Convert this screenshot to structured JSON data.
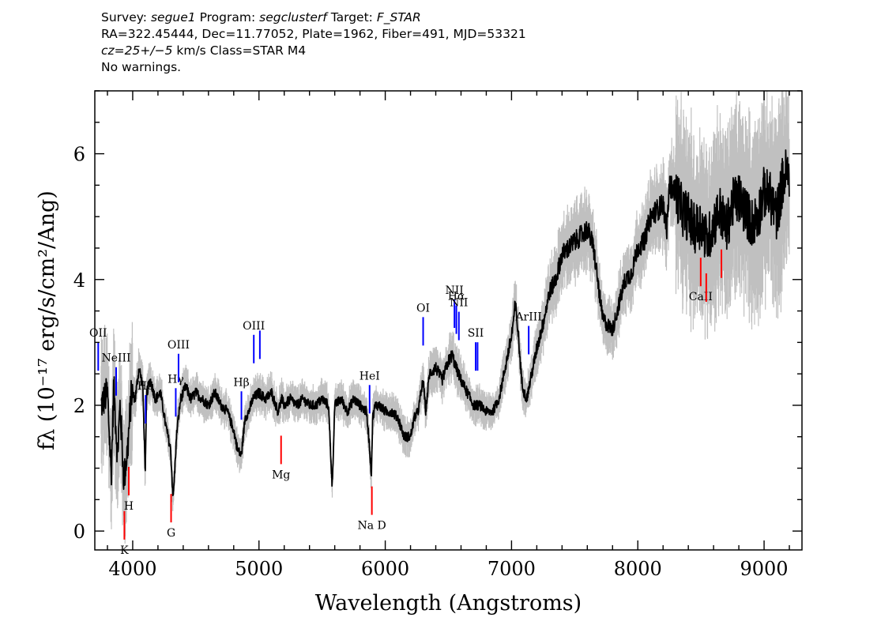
{
  "header": {
    "survey_label": "Survey:",
    "survey": "segue1",
    "program_label": "Program:",
    "program": "segclusterf",
    "target_label": "Target:",
    "target": "F_STAR",
    "coords_line": "RA=322.45444, Dec=11.77052, Plate=1962, Fiber=491, MJD=53321",
    "redshift": "cz=25+/−5",
    "redshift_units": "km/s",
    "class_text": "Class=STAR M4",
    "warnings": "No warnings."
  },
  "colors": {
    "flux": "#000000",
    "error": "#c0c0c0",
    "emission_line": "#0000ff",
    "absorption_line": "#ff0000",
    "axes": "#000000"
  },
  "chart_data": {
    "type": "line",
    "xlabel": "Wavelength (Angstroms)",
    "ylabel": "fλ (10⁻¹⁷ erg/s/cm²/Ang)",
    "xlim": [
      3700,
      9300
    ],
    "ylim": [
      -0.3,
      7.0
    ],
    "x_ticks": [
      4000,
      5000,
      6000,
      7000,
      8000,
      9000
    ],
    "x_tick_labels": [
      "4000",
      "5000",
      "6000",
      "7000",
      "8000",
      "9000"
    ],
    "y_ticks": [
      0,
      2,
      4,
      6
    ],
    "y_tick_labels": [
      "0",
      "2",
      "4",
      "6"
    ],
    "grid": false,
    "series": [
      {
        "role": "flux",
        "x": [
          3750,
          3800,
          3830,
          3850,
          3880,
          3900,
          3930,
          3960,
          3990,
          4020,
          4050,
          4080,
          4100,
          4110,
          4140,
          4180,
          4220,
          4260,
          4300,
          4320,
          4350,
          4380,
          4420,
          4460,
          4500,
          4550,
          4600,
          4650,
          4700,
          4750,
          4800,
          4830,
          4860,
          4890,
          4920,
          4950,
          5000,
          5050,
          5100,
          5150,
          5180,
          5200,
          5250,
          5300,
          5350,
          5400,
          5450,
          5500,
          5550,
          5580,
          5600,
          5650,
          5700,
          5750,
          5800,
          5850,
          5870,
          5890,
          5900,
          5920,
          5950,
          6000,
          6050,
          6100,
          6150,
          6200,
          6230,
          6260,
          6300,
          6320,
          6350,
          6400,
          6450,
          6500,
          6530,
          6560,
          6580,
          6600,
          6650,
          6700,
          6750,
          6800,
          6850,
          6900,
          6950,
          7000,
          7030,
          7050,
          7080,
          7100,
          7120,
          7150,
          7200,
          7250,
          7300,
          7350,
          7400,
          7450,
          7500,
          7550,
          7600,
          7620,
          7650,
          7700,
          7720,
          7750,
          7800,
          7850,
          7900,
          7950,
          8000,
          8050,
          8100,
          8150,
          8200,
          8230,
          8250,
          8300,
          8350,
          8400,
          8450,
          8500,
          8550,
          8600,
          8650,
          8700,
          8750,
          8800,
          8850,
          8900,
          8950,
          9000,
          9050,
          9100,
          9150,
          9180,
          9200
        ],
        "y": [
          2.0,
          2.2,
          0.9,
          2.3,
          1.2,
          2.0,
          0.8,
          1.3,
          2.2,
          2.1,
          2.6,
          2.3,
          0.9,
          2.2,
          2.4,
          2.1,
          2.2,
          1.7,
          1.3,
          0.5,
          1.6,
          2.1,
          2.3,
          2.1,
          2.2,
          2.1,
          2.0,
          2.2,
          2.0,
          1.9,
          1.6,
          1.3,
          1.2,
          1.8,
          1.9,
          2.1,
          2.2,
          2.1,
          2.2,
          1.9,
          2.1,
          2.0,
          2.1,
          2.0,
          2.1,
          2.0,
          2.0,
          2.1,
          2.0,
          0.7,
          2.0,
          2.1,
          1.9,
          2.1,
          2.0,
          1.9,
          1.5,
          0.9,
          1.8,
          2.0,
          2.0,
          1.9,
          1.9,
          1.8,
          1.5,
          1.5,
          1.8,
          1.9,
          2.4,
          1.9,
          2.5,
          2.6,
          2.4,
          2.7,
          2.8,
          2.6,
          2.5,
          2.4,
          2.2,
          2.0,
          2.0,
          1.9,
          1.9,
          2.1,
          2.6,
          3.1,
          3.6,
          3.2,
          2.4,
          2.2,
          2.1,
          2.4,
          2.9,
          3.3,
          3.8,
          4.0,
          4.4,
          4.5,
          4.6,
          4.7,
          4.8,
          4.7,
          4.5,
          3.7,
          3.4,
          3.3,
          3.2,
          3.6,
          4.0,
          4.1,
          4.5,
          4.6,
          5.0,
          5.1,
          5.2,
          4.8,
          5.5,
          5.4,
          5.1,
          5.0,
          4.8,
          4.9,
          4.6,
          4.9,
          5.1,
          4.8,
          5.2,
          5.3,
          5.1,
          4.9,
          5.0,
          5.4,
          5.3,
          5.0,
          5.6,
          5.7,
          5.5
        ]
      }
    ],
    "line_markers": [
      {
        "label": "OII",
        "wavelength": 3727,
        "kind": "emission"
      },
      {
        "label": "NeIII",
        "wavelength": 3869,
        "kind": "emission"
      },
      {
        "label": "Hδ",
        "wavelength": 4102,
        "kind": "emission"
      },
      {
        "label": "Hγ",
        "wavelength": 4341,
        "kind": "emission"
      },
      {
        "label": "OIII",
        "wavelength": 4363,
        "kind": "emission"
      },
      {
        "label": "Hβ",
        "wavelength": 4861,
        "kind": "emission"
      },
      {
        "label": "OIII",
        "wavelength": 4959,
        "kind": "emission"
      },
      {
        "label": "",
        "wavelength": 5007,
        "kind": "emission"
      },
      {
        "label": "HeI",
        "wavelength": 5876,
        "kind": "emission"
      },
      {
        "label": "OI",
        "wavelength": 6300,
        "kind": "emission"
      },
      {
        "label": "NII",
        "wavelength": 6548,
        "kind": "emission"
      },
      {
        "label": "Hα",
        "wavelength": 6563,
        "kind": "emission"
      },
      {
        "label": "NII",
        "wavelength": 6583,
        "kind": "emission"
      },
      {
        "label": "SII",
        "wavelength": 6716,
        "kind": "emission"
      },
      {
        "label": "",
        "wavelength": 6731,
        "kind": "emission"
      },
      {
        "label": "ArIII",
        "wavelength": 7136,
        "kind": "emission"
      },
      {
        "label": "K",
        "wavelength": 3934,
        "kind": "absorption"
      },
      {
        "label": "H",
        "wavelength": 3969,
        "kind": "absorption"
      },
      {
        "label": "G",
        "wavelength": 4304,
        "kind": "absorption"
      },
      {
        "label": "Mg",
        "wavelength": 5175,
        "kind": "absorption"
      },
      {
        "label": "Na D",
        "wavelength": 5894,
        "kind": "absorption"
      },
      {
        "label": "CaII",
        "wavelength": 8498,
        "kind": "absorption"
      },
      {
        "label": "",
        "wavelength": 8542,
        "kind": "absorption"
      },
      {
        "label": "",
        "wavelength": 8662,
        "kind": "absorption"
      }
    ]
  }
}
